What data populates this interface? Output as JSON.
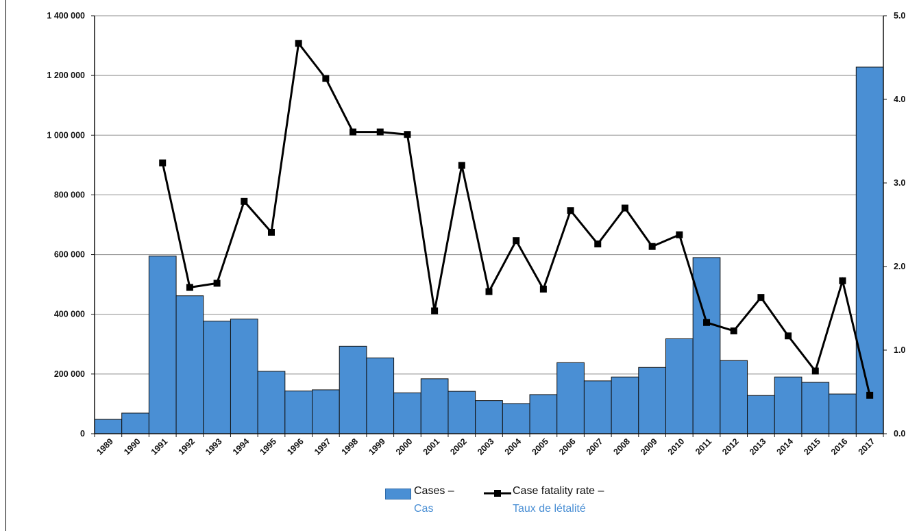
{
  "chart_data": {
    "type": "bar",
    "title": "",
    "xlabel": "",
    "ylabel": "",
    "y2label": "",
    "grid": true,
    "legend_position": "bottom",
    "ylim": [
      0,
      1400000
    ],
    "y2lim": [
      0.0,
      5.0
    ],
    "y_ticks": [
      "0",
      "200 000",
      "400 000",
      "600 000",
      "800 000",
      "1 000 000",
      "1 200 000",
      "1 400 000"
    ],
    "y2_ticks": [
      "0.0",
      "1.0",
      "2.0",
      "3.0",
      "4.0",
      "5.0"
    ],
    "categories": [
      "1989",
      "1990",
      "1991",
      "1992",
      "1993",
      "1994",
      "1995",
      "1996",
      "1997",
      "1998",
      "1999",
      "2000",
      "2001",
      "2002",
      "2003",
      "2004",
      "2005",
      "2006",
      "2007",
      "2008",
      "2009",
      "2010",
      "2011",
      "2012",
      "2013",
      "2014",
      "2015",
      "2016",
      "2017"
    ],
    "series": [
      {
        "name": "Cases – Cas",
        "type": "bar",
        "axis": "left",
        "color": "#4a8fd4",
        "values": [
          48000,
          69000,
          595000,
          462000,
          377000,
          384000,
          209000,
          143000,
          147000,
          293000,
          254000,
          137000,
          184000,
          142000,
          111000,
          101000,
          131000,
          238000,
          177000,
          190000,
          222000,
          318000,
          590000,
          245000,
          128000,
          190000,
          172000,
          133000,
          1228000
        ]
      },
      {
        "name": "Case fatality rate – Taux de létalité",
        "type": "line",
        "axis": "right",
        "color": "#000000",
        "values": [
          null,
          null,
          3.24,
          1.75,
          1.8,
          2.78,
          2.41,
          4.67,
          4.25,
          3.61,
          3.61,
          3.58,
          1.47,
          3.21,
          1.7,
          2.31,
          1.73,
          2.67,
          2.27,
          2.7,
          2.24,
          2.38,
          1.33,
          1.23,
          1.63,
          1.17,
          0.75,
          1.83,
          0.46
        ]
      }
    ]
  },
  "legend": {
    "cases_en": "Cases –",
    "cases_fr": "Cas",
    "cfr_en": "Case fatality rate –",
    "cfr_fr": "Taux de létalité"
  }
}
